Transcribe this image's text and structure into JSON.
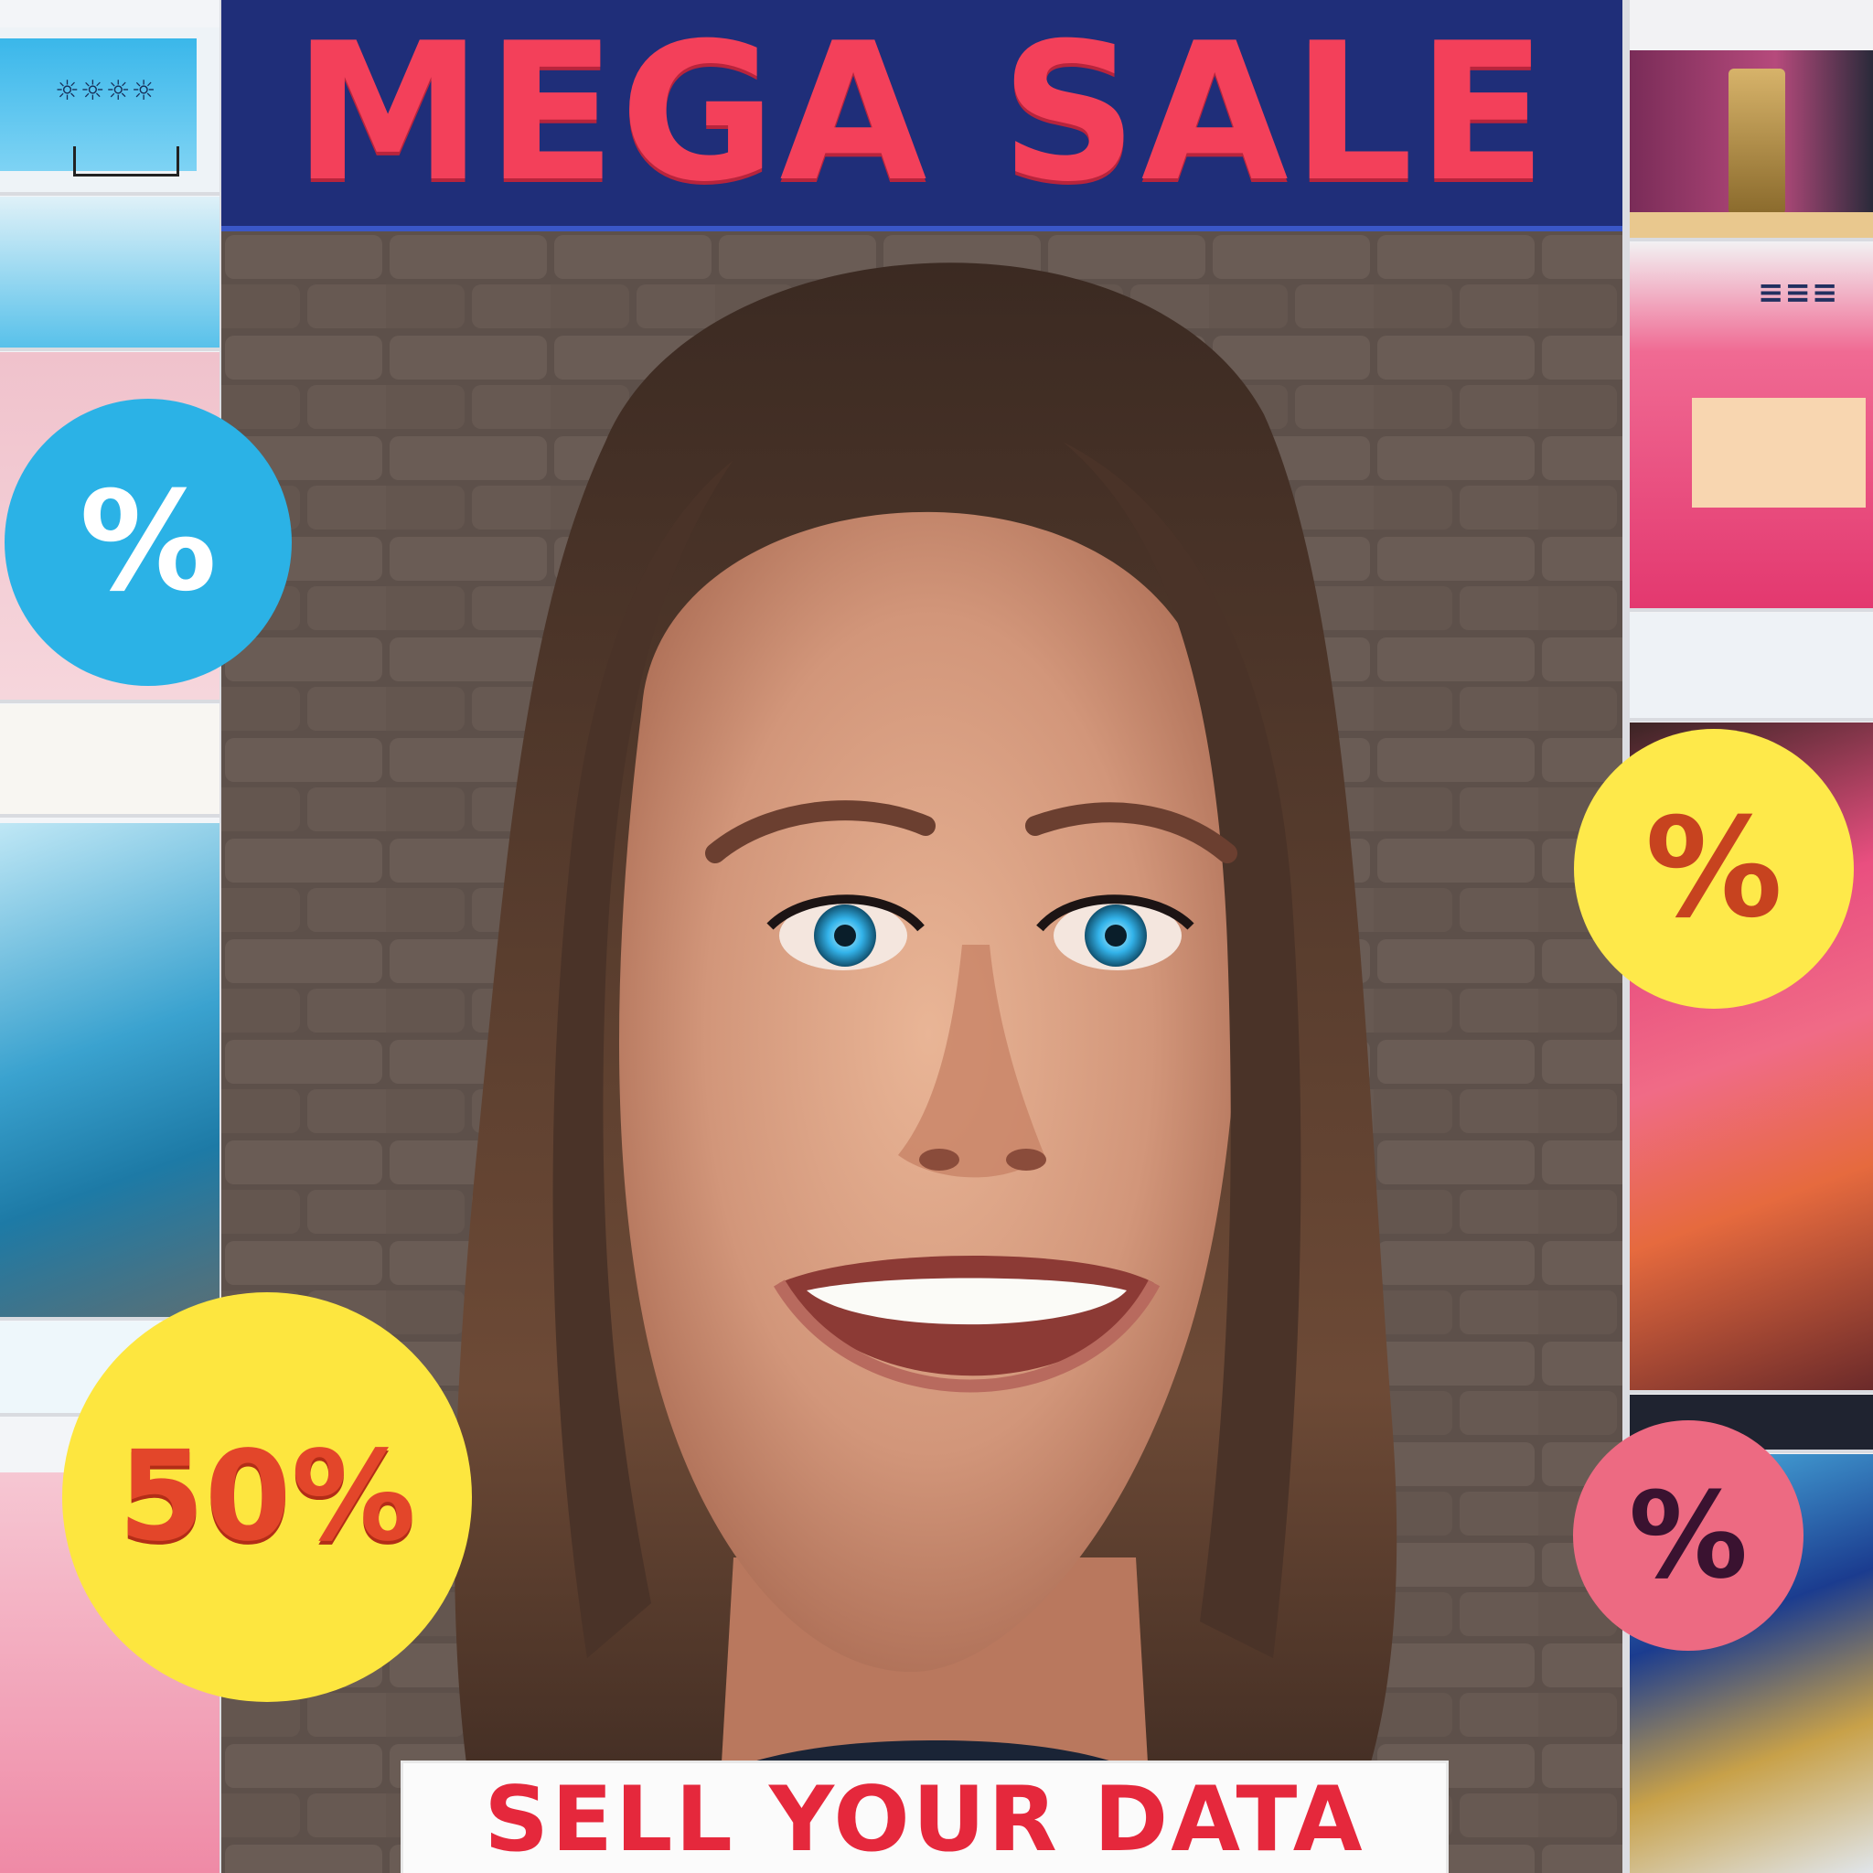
{
  "header": {
    "title": "MEGA SALE"
  },
  "footer": {
    "title": "SELL YOUR DATA"
  },
  "badges": {
    "blue": "%",
    "yellow_big": "50%",
    "yellow_small": "%",
    "pink": "%"
  },
  "colors": {
    "header_bg": "#1f2e79",
    "header_text": "#f3405a",
    "footer_text": "#e5283c",
    "badge_blue": "#2bb2e6",
    "badge_yellow": "#fde63f",
    "badge_pink": "#ed6a82"
  }
}
